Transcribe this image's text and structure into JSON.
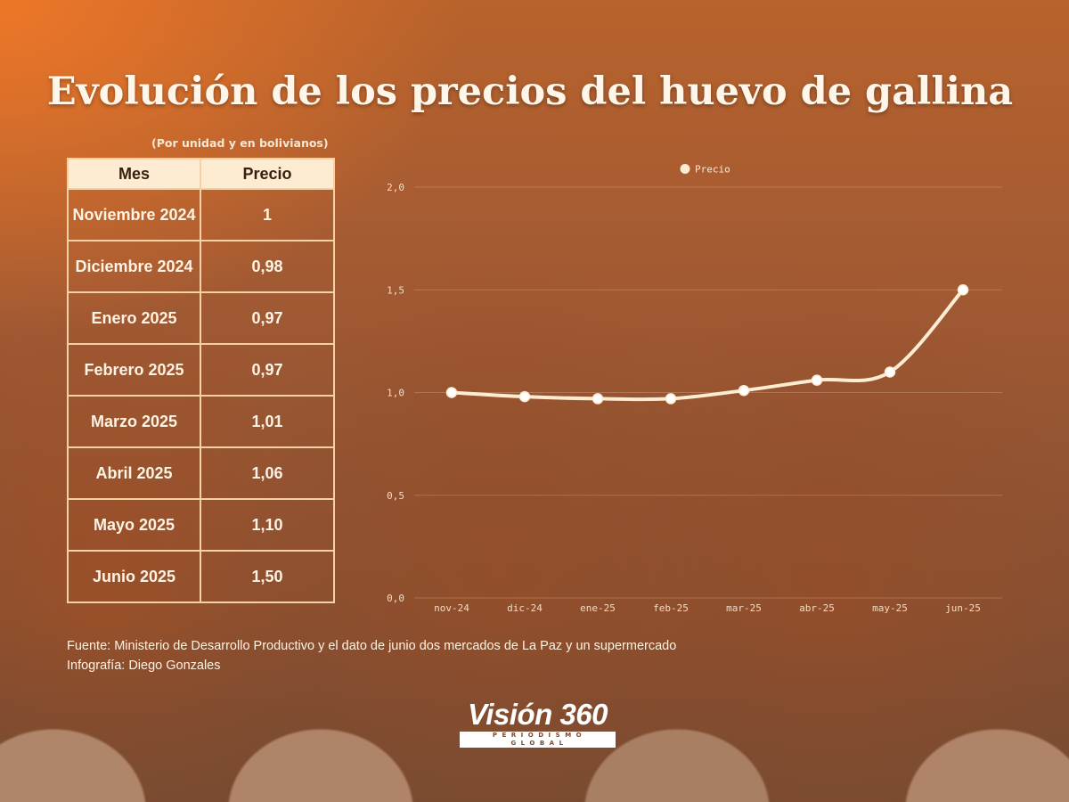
{
  "title": "Evolución de los precios del huevo de gallina",
  "subtitle": "(Por unidad y en bolivianos)",
  "table": {
    "headers": [
      "Mes",
      "Precio"
    ],
    "rows": [
      {
        "mes": "Noviembre 2024",
        "precio": "1"
      },
      {
        "mes": "Diciembre 2024",
        "precio": "0,98"
      },
      {
        "mes": "Enero 2025",
        "precio": "0,97"
      },
      {
        "mes": "Febrero 2025",
        "precio": "0,97"
      },
      {
        "mes": "Marzo 2025",
        "precio": "1,01"
      },
      {
        "mes": "Abril 2025",
        "precio": "1,06"
      },
      {
        "mes": "Mayo 2025",
        "precio": "1,10"
      },
      {
        "mes": "Junio 2025",
        "precio": "1,50"
      }
    ]
  },
  "chart_data": {
    "type": "line",
    "categories": [
      "nov-24",
      "dic-24",
      "ene-25",
      "feb-25",
      "mar-25",
      "abr-25",
      "may-25",
      "jun-25"
    ],
    "series": [
      {
        "name": "Precio",
        "values": [
          1.0,
          0.98,
          0.97,
          0.97,
          1.01,
          1.06,
          1.1,
          1.5
        ],
        "color": "#fdebd2"
      }
    ],
    "yticks": [
      "0,0",
      "0,5",
      "1,0",
      "1,5",
      "2,0"
    ],
    "ylim": [
      0,
      2
    ],
    "grid": true,
    "legend": "top-center"
  },
  "source": {
    "line1": "Fuente: Ministerio de Desarrollo Productivo  y el dato de junio dos mercados de La Paz y un supermercado",
    "line2": "Infografía: Diego Gonzales"
  },
  "logo": {
    "name": "Visión 360",
    "tagline": "PERIODISMO GLOBAL"
  }
}
